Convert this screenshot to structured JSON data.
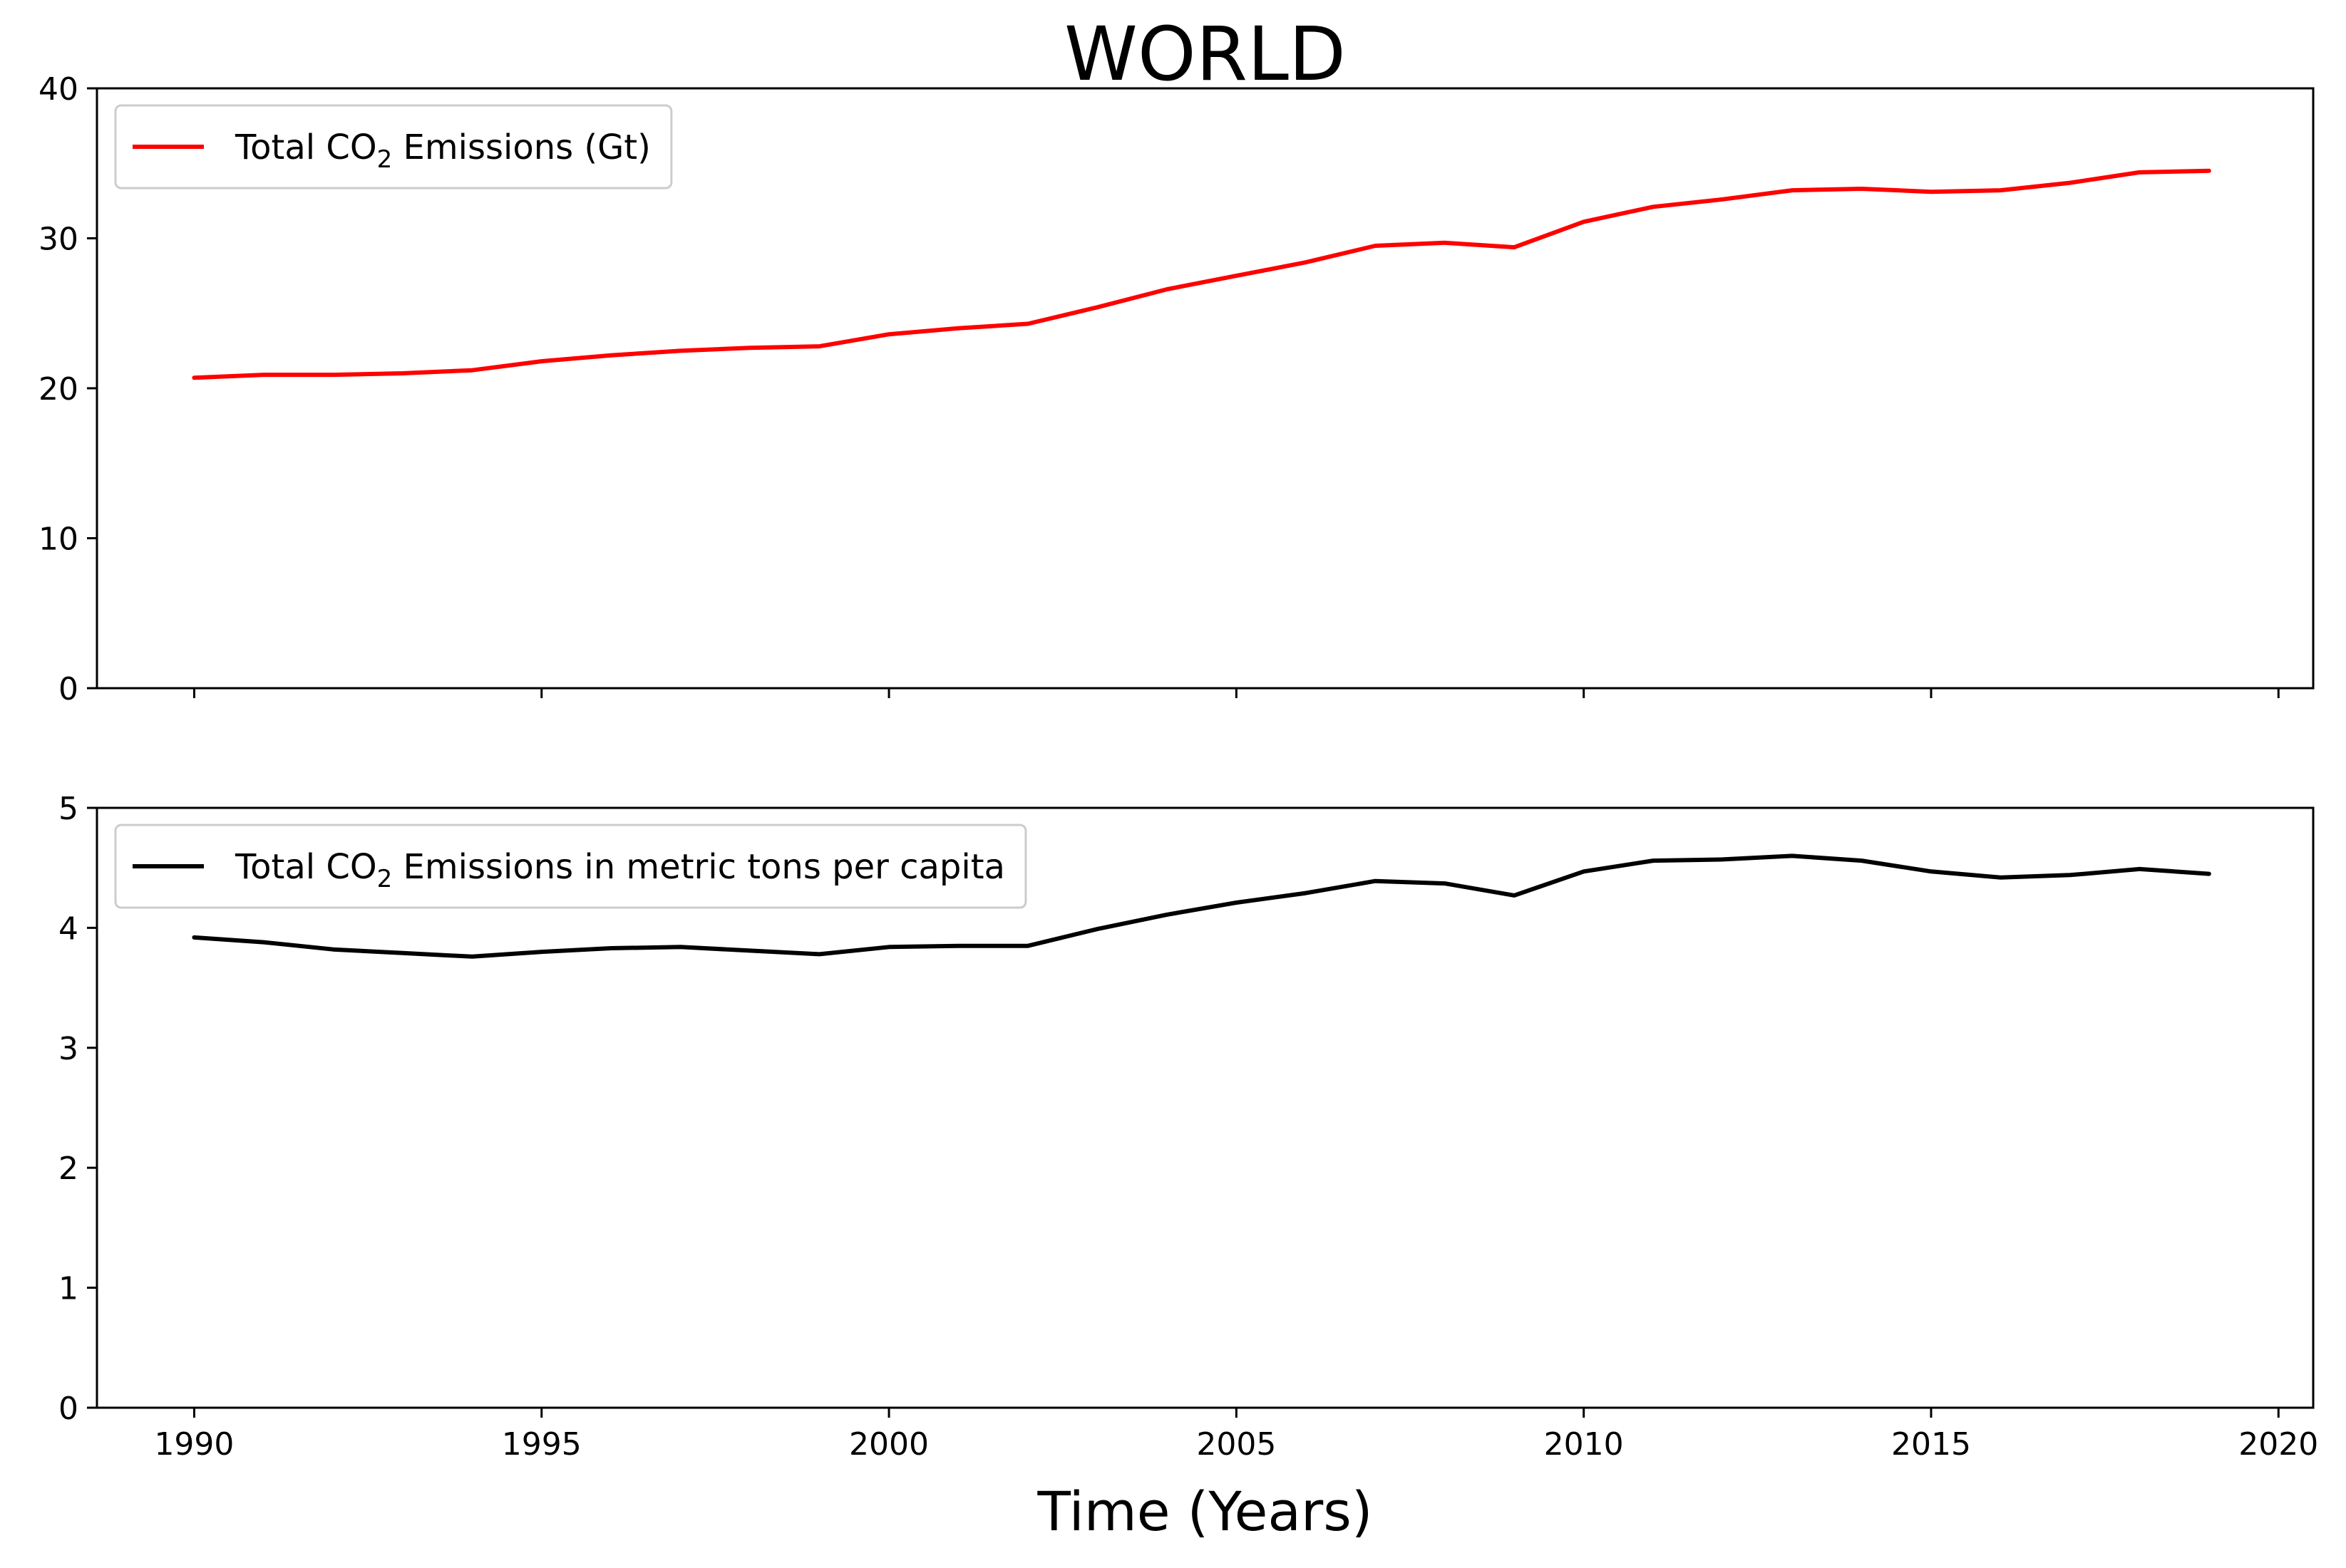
{
  "chart_data": [
    {
      "type": "line",
      "title": "WORLD",
      "xlabel": "",
      "ylabel": "",
      "xlim": [
        1988.6,
        2020.5
      ],
      "ylim": [
        0,
        40
      ],
      "yticks": [
        0,
        10,
        20,
        30,
        40
      ],
      "xticks": [
        1990,
        1995,
        2000,
        2005,
        2010,
        2015,
        2020
      ],
      "show_xtick_labels": false,
      "legend": "top-left",
      "series": [
        {
          "name": "Total CO2 Emissions (Gt)",
          "legend_main": "Total CO",
          "legend_sub": "2",
          "legend_rest": " Emissions (Gt)",
          "color": "#ff0000",
          "x": [
            1990,
            1991,
            1992,
            1993,
            1994,
            1995,
            1996,
            1997,
            1998,
            1999,
            2000,
            2001,
            2002,
            2003,
            2004,
            2005,
            2006,
            2007,
            2008,
            2009,
            2010,
            2011,
            2012,
            2013,
            2014,
            2015,
            2016,
            2017,
            2018,
            2019
          ],
          "values": [
            20.7,
            20.9,
            20.9,
            21.0,
            21.2,
            21.8,
            22.2,
            22.5,
            22.7,
            22.8,
            23.6,
            24.0,
            24.3,
            25.4,
            26.6,
            27.5,
            28.4,
            29.5,
            29.7,
            29.4,
            31.1,
            32.1,
            32.6,
            33.2,
            33.3,
            33.1,
            33.2,
            33.7,
            34.4,
            34.5
          ]
        }
      ]
    },
    {
      "type": "line",
      "title": "",
      "xlabel": "Time (Years)",
      "ylabel": "",
      "xlim": [
        1988.6,
        2020.5
      ],
      "ylim": [
        0,
        5
      ],
      "yticks": [
        0,
        1,
        2,
        3,
        4,
        5
      ],
      "xticks": [
        1990,
        1995,
        2000,
        2005,
        2010,
        2015,
        2020
      ],
      "show_xtick_labels": true,
      "legend": "top-left",
      "series": [
        {
          "name": "Total CO2 Emissions in metric tons per capita",
          "legend_main": "Total CO",
          "legend_sub": "2",
          "legend_rest": " Emissions in metric tons per capita",
          "color": "#000000",
          "x": [
            1990,
            1991,
            1992,
            1993,
            1994,
            1995,
            1996,
            1997,
            1998,
            1999,
            2000,
            2001,
            2002,
            2003,
            2004,
            2005,
            2006,
            2007,
            2008,
            2009,
            2010,
            2011,
            2012,
            2013,
            2014,
            2015,
            2016,
            2017,
            2018,
            2019
          ],
          "values": [
            3.92,
            3.88,
            3.82,
            3.79,
            3.76,
            3.8,
            3.83,
            3.84,
            3.81,
            3.78,
            3.84,
            3.85,
            3.85,
            3.99,
            4.11,
            4.21,
            4.29,
            4.39,
            4.37,
            4.27,
            4.47,
            4.56,
            4.57,
            4.6,
            4.56,
            4.47,
            4.42,
            4.44,
            4.49,
            4.45
          ]
        }
      ]
    }
  ]
}
